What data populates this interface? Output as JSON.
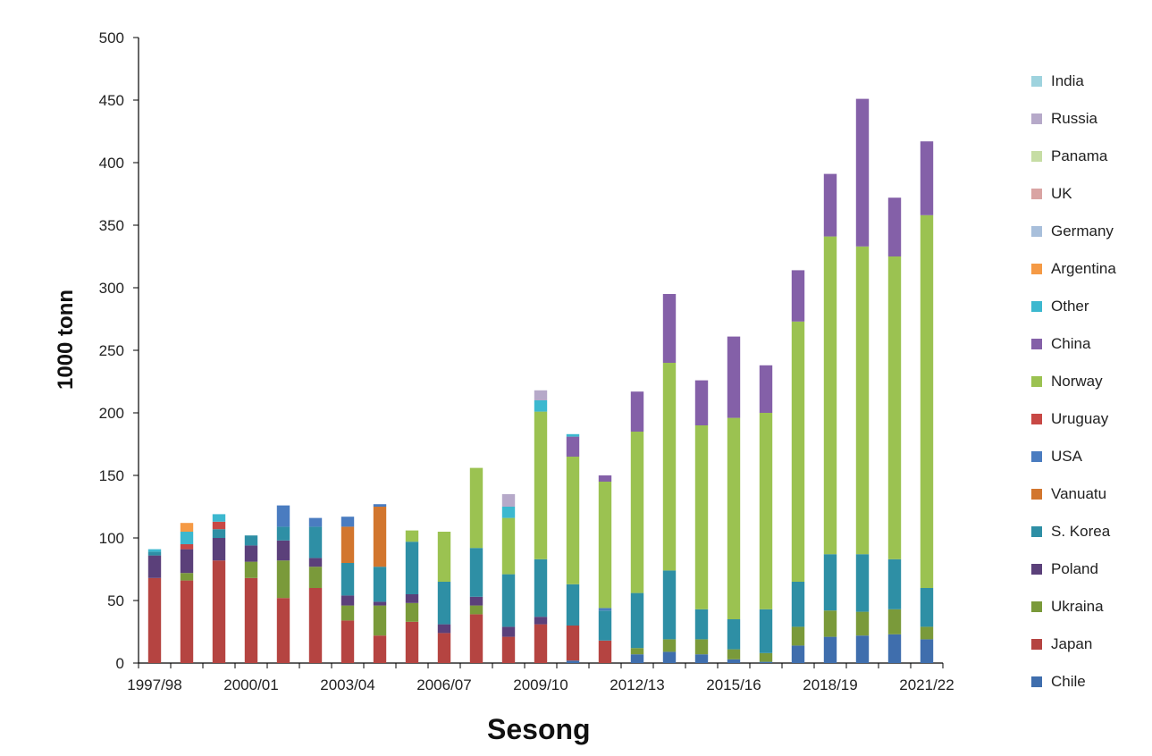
{
  "chart_data": {
    "type": "bar",
    "stacked": true,
    "xlabel": "Sesong",
    "ylabel": "1000 tonn",
    "ylim": [
      0,
      500
    ],
    "yticks": [
      0,
      50,
      100,
      150,
      200,
      250,
      300,
      350,
      400,
      450,
      500
    ],
    "grid": false,
    "legend_position": "right",
    "categories": [
      "1997/98",
      "1998/99",
      "1999/00",
      "2000/01",
      "2001/02",
      "2002/03",
      "2003/04",
      "2004/05",
      "2005/06",
      "2006/07",
      "2007/08",
      "2008/09",
      "2009/10",
      "2010/11",
      "2011/12",
      "2012/13",
      "2013/14",
      "2014/15",
      "2015/16",
      "2016/17",
      "2017/18",
      "2018/19",
      "2019/20",
      "2020/21",
      "2021/22"
    ],
    "xtick_labels": [
      "1997/98",
      "2000/01",
      "2003/04",
      "2006/07",
      "2009/10",
      "2012/13",
      "2015/16",
      "2018/19",
      "2021/22"
    ],
    "series": [
      {
        "name": "Chile",
        "color": "#3F6EAD",
        "values": [
          0,
          0,
          0,
          0,
          0,
          0,
          0,
          0,
          0,
          0,
          0,
          0,
          0,
          2,
          0,
          7,
          9,
          7,
          3,
          1,
          14,
          21,
          22,
          23,
          19
        ]
      },
      {
        "name": "Japan",
        "color": "#B54441",
        "values": [
          68,
          66,
          82,
          68,
          52,
          60,
          34,
          22,
          33,
          24,
          39,
          21,
          31,
          28,
          18,
          0,
          0,
          0,
          0,
          0,
          0,
          0,
          0,
          0,
          0
        ]
      },
      {
        "name": "Ukraina",
        "color": "#7A9A3A",
        "values": [
          0,
          6,
          0,
          13,
          30,
          17,
          12,
          24,
          15,
          0,
          7,
          0,
          0,
          0,
          0,
          5,
          10,
          12,
          8,
          7,
          15,
          21,
          19,
          20,
          10
        ]
      },
      {
        "name": "Poland",
        "color": "#5B407A",
        "values": [
          18,
          19,
          18,
          13,
          16,
          7,
          8,
          3,
          7,
          7,
          7,
          8,
          6,
          0,
          0,
          0,
          0,
          0,
          0,
          0,
          0,
          0,
          0,
          0,
          0
        ]
      },
      {
        "name": "S. Korea",
        "color": "#2E8FA5",
        "values": [
          3,
          0,
          7,
          8,
          11,
          25,
          26,
          28,
          42,
          34,
          39,
          42,
          46,
          33,
          24,
          44,
          55,
          24,
          24,
          35,
          36,
          45,
          46,
          40,
          31
        ]
      },
      {
        "name": "Vanuatu",
        "color": "#D2762E",
        "values": [
          0,
          0,
          0,
          0,
          0,
          0,
          29,
          48,
          0,
          0,
          0,
          0,
          0,
          0,
          0,
          0,
          0,
          0,
          0,
          0,
          0,
          0,
          0,
          0,
          0
        ]
      },
      {
        "name": "USA",
        "color": "#4A7CC0",
        "values": [
          0,
          0,
          0,
          0,
          17,
          7,
          8,
          2,
          0,
          0,
          0,
          0,
          0,
          0,
          2,
          0,
          0,
          0,
          0,
          0,
          0,
          0,
          0,
          0,
          0
        ]
      },
      {
        "name": "Uruguay",
        "color": "#C84845",
        "values": [
          0,
          4,
          6,
          0,
          0,
          0,
          0,
          0,
          0,
          0,
          0,
          0,
          0,
          0,
          0,
          0,
          0,
          0,
          0,
          0,
          0,
          0,
          0,
          0,
          0
        ]
      },
      {
        "name": "Norway",
        "color": "#9BC251",
        "values": [
          0,
          0,
          0,
          0,
          0,
          0,
          0,
          0,
          9,
          40,
          64,
          45,
          118,
          102,
          101,
          129,
          166,
          147,
          161,
          157,
          208,
          254,
          246,
          242,
          298
        ]
      },
      {
        "name": "China",
        "color": "#8460A8",
        "values": [
          0,
          0,
          0,
          0,
          0,
          0,
          0,
          0,
          0,
          0,
          0,
          0,
          0,
          16,
          5,
          32,
          55,
          36,
          65,
          38,
          41,
          50,
          118,
          47,
          59
        ]
      },
      {
        "name": "Other",
        "color": "#3CB8CF",
        "values": [
          2,
          10,
          6,
          0,
          0,
          0,
          0,
          0,
          0,
          0,
          0,
          9,
          9,
          2,
          0,
          0,
          0,
          0,
          0,
          0,
          0,
          0,
          0,
          0,
          0
        ]
      },
      {
        "name": "Argentina",
        "color": "#F59A45",
        "values": [
          0,
          7,
          0,
          0,
          0,
          0,
          0,
          0,
          0,
          0,
          0,
          0,
          0,
          0,
          0,
          0,
          0,
          0,
          0,
          0,
          0,
          0,
          0,
          0,
          0
        ]
      },
      {
        "name": "Germany",
        "color": "#A8BFDB",
        "values": [
          0,
          0,
          0,
          0,
          0,
          0,
          0,
          0,
          0,
          0,
          0,
          0,
          0,
          0,
          0,
          0,
          0,
          0,
          0,
          0,
          0,
          0,
          0,
          0,
          0
        ]
      },
      {
        "name": "UK",
        "color": "#D9A4A3",
        "values": [
          0,
          0,
          0,
          0,
          0,
          0,
          0,
          0,
          0,
          0,
          0,
          0,
          0,
          0,
          0,
          0,
          0,
          0,
          0,
          0,
          0,
          0,
          0,
          0,
          0
        ]
      },
      {
        "name": "Panama",
        "color": "#C6DDA4",
        "values": [
          0,
          0,
          0,
          0,
          0,
          0,
          0,
          0,
          0,
          0,
          0,
          0,
          0,
          0,
          0,
          0,
          0,
          0,
          0,
          0,
          0,
          0,
          0,
          0,
          0
        ]
      },
      {
        "name": "Russia",
        "color": "#B6A9C9",
        "values": [
          0,
          0,
          0,
          0,
          0,
          0,
          0,
          0,
          0,
          0,
          0,
          10,
          8,
          0,
          0,
          0,
          0,
          0,
          0,
          0,
          0,
          0,
          0,
          0,
          0
        ]
      },
      {
        "name": "India",
        "color": "#9ED3DE",
        "values": [
          0,
          0,
          0,
          0,
          0,
          0,
          0,
          0,
          0,
          0,
          0,
          0,
          0,
          0,
          0,
          0,
          0,
          0,
          0,
          0,
          0,
          0,
          0,
          0,
          0
        ]
      }
    ]
  }
}
